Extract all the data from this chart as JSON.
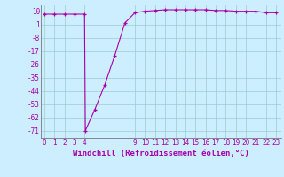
{
  "x": [
    0,
    1,
    2,
    3,
    4,
    4.08,
    5,
    6,
    7,
    8,
    9,
    10,
    11,
    12,
    13,
    14,
    15,
    16,
    17,
    18,
    19,
    20,
    21,
    22,
    23
  ],
  "y": [
    8,
    8,
    8,
    8,
    8,
    -71,
    -57,
    -40,
    -20,
    2,
    9,
    10,
    10.5,
    11,
    11,
    11,
    11,
    11,
    10.5,
    10.5,
    10,
    10,
    10,
    9,
    9
  ],
  "xticks": [
    0,
    1,
    2,
    3,
    4,
    9,
    10,
    11,
    12,
    13,
    14,
    15,
    16,
    17,
    18,
    19,
    20,
    21,
    22,
    23
  ],
  "xtick_labels": [
    "0",
    "1",
    "2",
    "3",
    "4",
    "9",
    "10",
    "11",
    "12",
    "13",
    "14",
    "15",
    "16",
    "17",
    "18",
    "19",
    "20",
    "21",
    "22",
    "23"
  ],
  "yticks": [
    10,
    1,
    -8,
    -17,
    -26,
    -35,
    -44,
    -53,
    -62,
    -71
  ],
  "ytick_labels": [
    "10",
    "1",
    "-8",
    "-17",
    "-26",
    "-35",
    "-44",
    "-53",
    "-62",
    "-71"
  ],
  "xlabel": "Windchill (Refroidissement éolien,°C)",
  "line_color": "#aa00aa",
  "bg_color": "#cceeff",
  "grid_color": "#99cccc",
  "ylim": [
    -76,
    14
  ],
  "xlim": [
    -0.3,
    23.5
  ],
  "xlabel_fontsize": 6.5,
  "tick_fontsize": 5.5
}
